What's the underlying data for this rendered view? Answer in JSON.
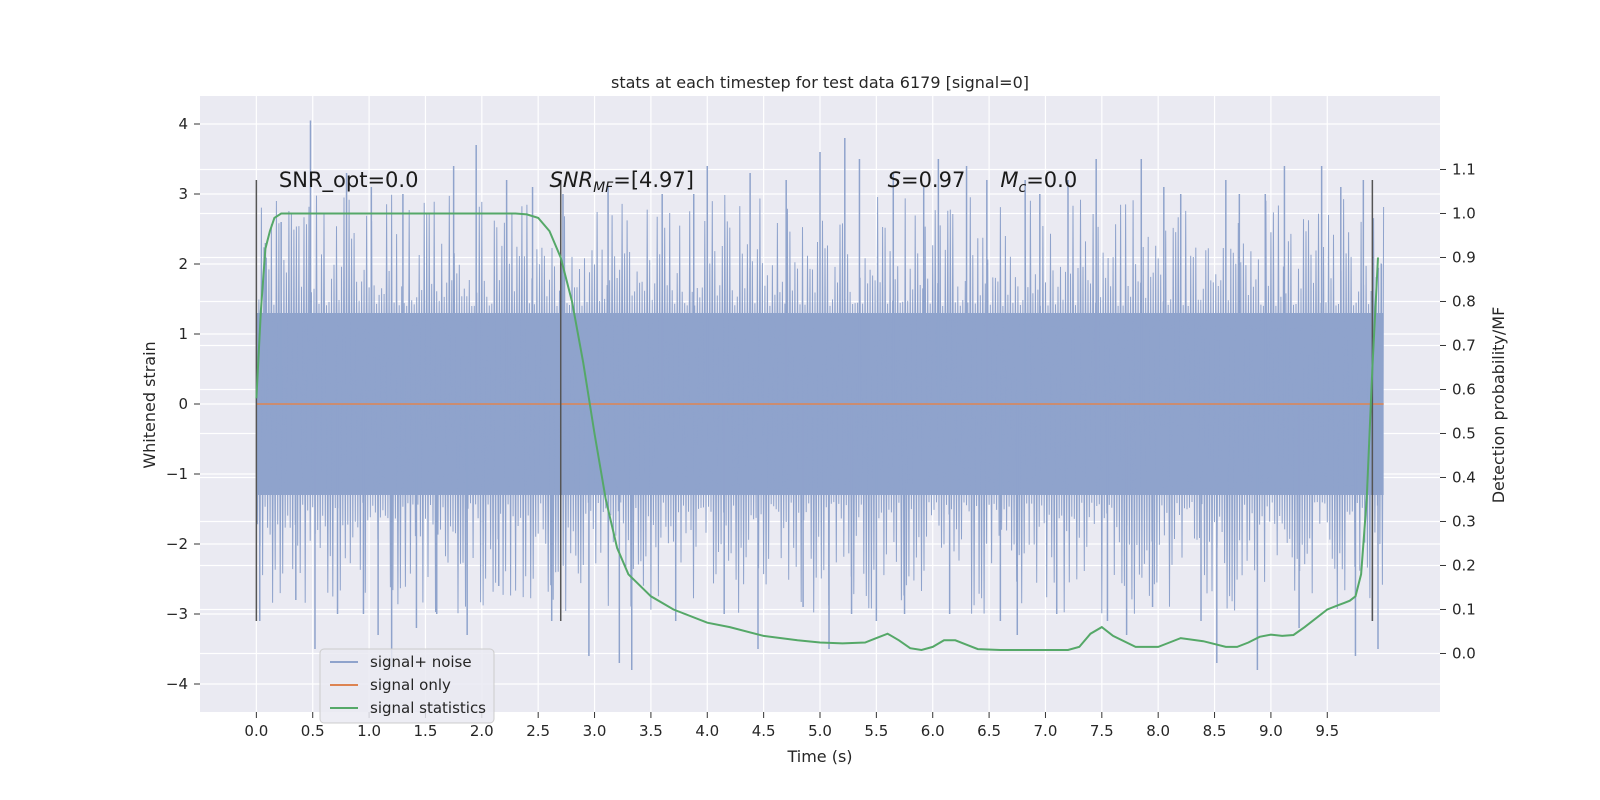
{
  "chart_data": {
    "type": "line",
    "title": "stats at each timestep for test data 6179 [signal=0]",
    "xlabel": "Time (s)",
    "ylabel": "Whitened strain",
    "y2label": "Detection probability/MF",
    "xlim": [
      -0.5,
      10.5
    ],
    "ylim": [
      -4.4,
      4.4
    ],
    "y2lim": [
      -0.133,
      1.267
    ],
    "x_ticks": [
      "0.0",
      "0.5",
      "1.0",
      "1.5",
      "2.0",
      "2.5",
      "3.0",
      "3.5",
      "4.0",
      "4.5",
      "5.0",
      "5.5",
      "6.0",
      "6.5",
      "7.0",
      "7.5",
      "8.0",
      "8.5",
      "9.0",
      "9.5"
    ],
    "y_ticks": [
      "4",
      "3",
      "2",
      "1",
      "0",
      "−1",
      "−2",
      "−3",
      "−4"
    ],
    "y2_ticks": [
      "1.1",
      "1.0",
      "0.9",
      "0.8",
      "0.7",
      "0.6",
      "0.5",
      "0.4",
      "0.3",
      "0.2",
      "0.1",
      "0.0"
    ],
    "grid": true,
    "legend_position": "lower-left",
    "series": [
      {
        "name": "signal+ noise",
        "color": "#8fa3cc",
        "axis": "left",
        "x_range": [
          0.0,
          10.0
        ],
        "band": [
          -1.3,
          1.3
        ],
        "spikes": [
          [
            0.03,
            -3.1
          ],
          [
            0.08,
            2.3
          ],
          [
            0.22,
            2.6
          ],
          [
            0.35,
            -2.8
          ],
          [
            0.48,
            4.05
          ],
          [
            0.52,
            -3.5
          ],
          [
            0.72,
            -3.0
          ],
          [
            0.8,
            3.3
          ],
          [
            0.95,
            -3.0
          ],
          [
            1.02,
            3.1
          ],
          [
            1.08,
            -3.3
          ],
          [
            1.2,
            -3.8
          ],
          [
            1.3,
            3.0
          ],
          [
            1.42,
            -3.2
          ],
          [
            1.6,
            -3.0
          ],
          [
            1.75,
            3.4
          ],
          [
            1.87,
            -3.3
          ],
          [
            1.95,
            3.7
          ],
          [
            2.15,
            -2.6
          ],
          [
            2.22,
            3.2
          ],
          [
            2.45,
            3.1
          ],
          [
            2.62,
            -3.1
          ],
          [
            2.72,
            3.0
          ],
          [
            2.95,
            -3.6
          ],
          [
            3.12,
            3.1
          ],
          [
            3.22,
            -3.7
          ],
          [
            3.33,
            -3.8
          ],
          [
            3.6,
            3.0
          ],
          [
            3.72,
            -3.1
          ],
          [
            3.88,
            3.0
          ],
          [
            4.0,
            3.4
          ],
          [
            4.15,
            -3.0
          ],
          [
            4.38,
            3.3
          ],
          [
            4.45,
            -3.5
          ],
          [
            4.7,
            3.2
          ],
          [
            4.85,
            -2.9
          ],
          [
            5.0,
            3.6
          ],
          [
            5.08,
            -3.5
          ],
          [
            5.22,
            3.8
          ],
          [
            5.28,
            -3.0
          ],
          [
            5.35,
            3.5
          ],
          [
            5.5,
            -3.1
          ],
          [
            5.65,
            3.3
          ],
          [
            5.75,
            -3.0
          ],
          [
            5.92,
            3.1
          ],
          [
            6.05,
            3.5
          ],
          [
            6.15,
            -3.0
          ],
          [
            6.3,
            3.4
          ],
          [
            6.48,
            3.2
          ],
          [
            6.6,
            -3.1
          ],
          [
            6.75,
            -3.3
          ],
          [
            6.82,
            3.2
          ],
          [
            6.95,
            3.0
          ],
          [
            7.1,
            -3.0
          ],
          [
            7.2,
            3.2
          ],
          [
            7.45,
            3.5
          ],
          [
            7.55,
            -3.1
          ],
          [
            7.72,
            -3.3
          ],
          [
            7.85,
            3.5
          ],
          [
            7.95,
            -2.9
          ],
          [
            8.05,
            3.1
          ],
          [
            8.2,
            3.0
          ],
          [
            8.38,
            -3.1
          ],
          [
            8.52,
            -3.7
          ],
          [
            8.6,
            3.2
          ],
          [
            8.72,
            3.0
          ],
          [
            8.88,
            -3.8
          ],
          [
            8.95,
            3.0
          ],
          [
            9.12,
            3.4
          ],
          [
            9.25,
            -3.2
          ],
          [
            9.45,
            3.4
          ],
          [
            9.62,
            3.1
          ],
          [
            9.75,
            -3.6
          ],
          [
            9.82,
            3.2
          ],
          [
            9.9,
            -3.1
          ],
          [
            9.95,
            -3.5
          ],
          [
            9.98,
            2.0
          ]
        ]
      },
      {
        "name": "signal only",
        "color": "#dd8452",
        "axis": "left",
        "x": [
          0.0,
          10.0
        ],
        "y": [
          0.0,
          0.0
        ]
      },
      {
        "name": "signal statistics",
        "color": "#55a868",
        "axis": "right",
        "x": [
          0.0,
          0.04,
          0.08,
          0.12,
          0.16,
          0.22,
          0.3,
          0.5,
          1.0,
          1.5,
          2.0,
          2.3,
          2.4,
          2.5,
          2.6,
          2.7,
          2.8,
          2.9,
          3.0,
          3.1,
          3.2,
          3.3,
          3.5,
          3.7,
          4.0,
          4.2,
          4.5,
          4.8,
          5.0,
          5.2,
          5.4,
          5.5,
          5.6,
          5.7,
          5.8,
          5.9,
          6.0,
          6.1,
          6.2,
          6.3,
          6.4,
          6.6,
          7.0,
          7.2,
          7.3,
          7.4,
          7.5,
          7.6,
          7.8,
          8.0,
          8.1,
          8.2,
          8.4,
          8.6,
          8.7,
          8.8,
          8.9,
          9.0,
          9.1,
          9.2,
          9.3,
          9.5,
          9.6,
          9.65,
          9.7,
          9.75,
          9.8,
          9.85,
          9.9,
          9.95
        ],
        "y": [
          0.58,
          0.78,
          0.92,
          0.96,
          0.99,
          1.0,
          1.0,
          1.0,
          1.0,
          1.0,
          1.0,
          1.0,
          0.998,
          0.99,
          0.96,
          0.9,
          0.8,
          0.66,
          0.5,
          0.35,
          0.24,
          0.18,
          0.13,
          0.1,
          0.07,
          0.06,
          0.04,
          0.03,
          0.025,
          0.023,
          0.025,
          0.035,
          0.045,
          0.03,
          0.012,
          0.008,
          0.015,
          0.03,
          0.03,
          0.02,
          0.01,
          0.008,
          0.008,
          0.008,
          0.015,
          0.045,
          0.06,
          0.04,
          0.015,
          0.015,
          0.025,
          0.035,
          0.028,
          0.015,
          0.015,
          0.025,
          0.038,
          0.043,
          0.04,
          0.042,
          0.06,
          0.1,
          0.11,
          0.115,
          0.12,
          0.13,
          0.18,
          0.35,
          0.65,
          0.9
        ]
      }
    ],
    "markers_x": [
      0.0,
      2.7,
      9.9
    ],
    "marker_range": [
      -3.1,
      3.2
    ],
    "annotations": [
      {
        "x": 0.2,
        "y": 3.1,
        "text": "SNR_opt=0.0"
      },
      {
        "x": 2.6,
        "y": 3.1,
        "var": "SNR",
        "sub": "MF",
        "text": "=[4.97]"
      },
      {
        "x": 5.6,
        "y": 3.1,
        "var": "S",
        "text": "=0.97"
      },
      {
        "x": 6.6,
        "y": 3.1,
        "var": "M",
        "sub": "c",
        "text": "=0.0"
      }
    ]
  }
}
